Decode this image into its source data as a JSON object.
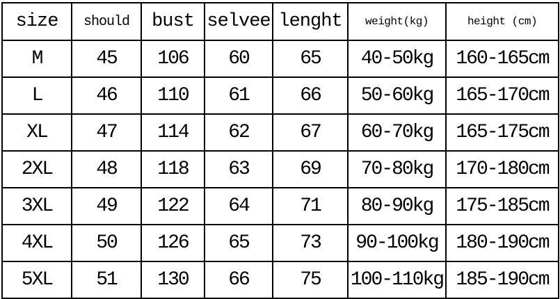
{
  "headers": [
    "size",
    "should",
    "bust",
    "selvee",
    "lenght",
    "weight(kg)",
    "height (cm)"
  ],
  "rows": [
    [
      "M",
      "45",
      "106",
      "60",
      "65",
      "40-50kg",
      "160-165cm"
    ],
    [
      "L",
      "46",
      "110",
      "61",
      "66",
      "50-60kg",
      "165-170cm"
    ],
    [
      "XL",
      "47",
      "114",
      "62",
      "67",
      "60-70kg",
      "165-175cm"
    ],
    [
      "2XL",
      "48",
      "118",
      "63",
      "69",
      "70-80kg",
      "170-180cm"
    ],
    [
      "3XL",
      "49",
      "122",
      "64",
      "71",
      "80-90kg",
      "175-185cm"
    ],
    [
      "4XL",
      "50",
      "126",
      "65",
      "73",
      "90-100kg",
      "180-190cm"
    ],
    [
      "5XL",
      "51",
      "130",
      "66",
      "75",
      "100-110kg",
      "185-190cm"
    ]
  ]
}
